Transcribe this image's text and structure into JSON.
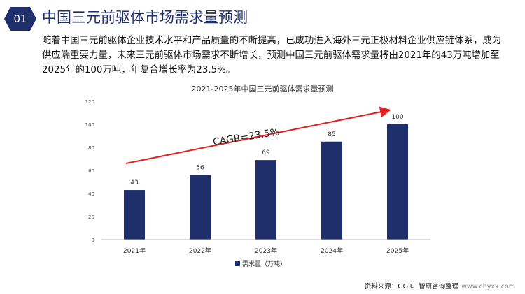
{
  "header": {
    "number": "01",
    "title": "中国三元前驱体市场需求量预测"
  },
  "description": "随着中国三元前驱体企业技术水平和产品质量的不断提高，已成功进入海外三元正极材料企业供应链体系，成为供应端重要力量，未来三元前驱体市场需求不断增长，预测中国三元前驱体需求量将由2021年的43万吨增加至2025年的100万吨，年复合增长率为23.5%。",
  "chart_data": {
    "type": "bar",
    "title": "2021-2025年中国三元前驱体需求量预测",
    "categories": [
      "2021年",
      "2022年",
      "2023年",
      "2024年",
      "2025年"
    ],
    "series": [
      {
        "name": "需求量（万吨）",
        "values": [
          43,
          56,
          69,
          85,
          100
        ]
      }
    ],
    "ylim": [
      0,
      120
    ],
    "yticks": [
      0,
      20,
      40,
      60,
      80,
      100,
      120
    ],
    "annotation": "CAGR=23.5%",
    "legend": "bottom",
    "bar_color": "#1f2f6b",
    "arrow_color": "#e02020"
  },
  "footer": {
    "source": "资料来源：GGII、智研咨询整理",
    "url": "www.chyxx.com"
  }
}
